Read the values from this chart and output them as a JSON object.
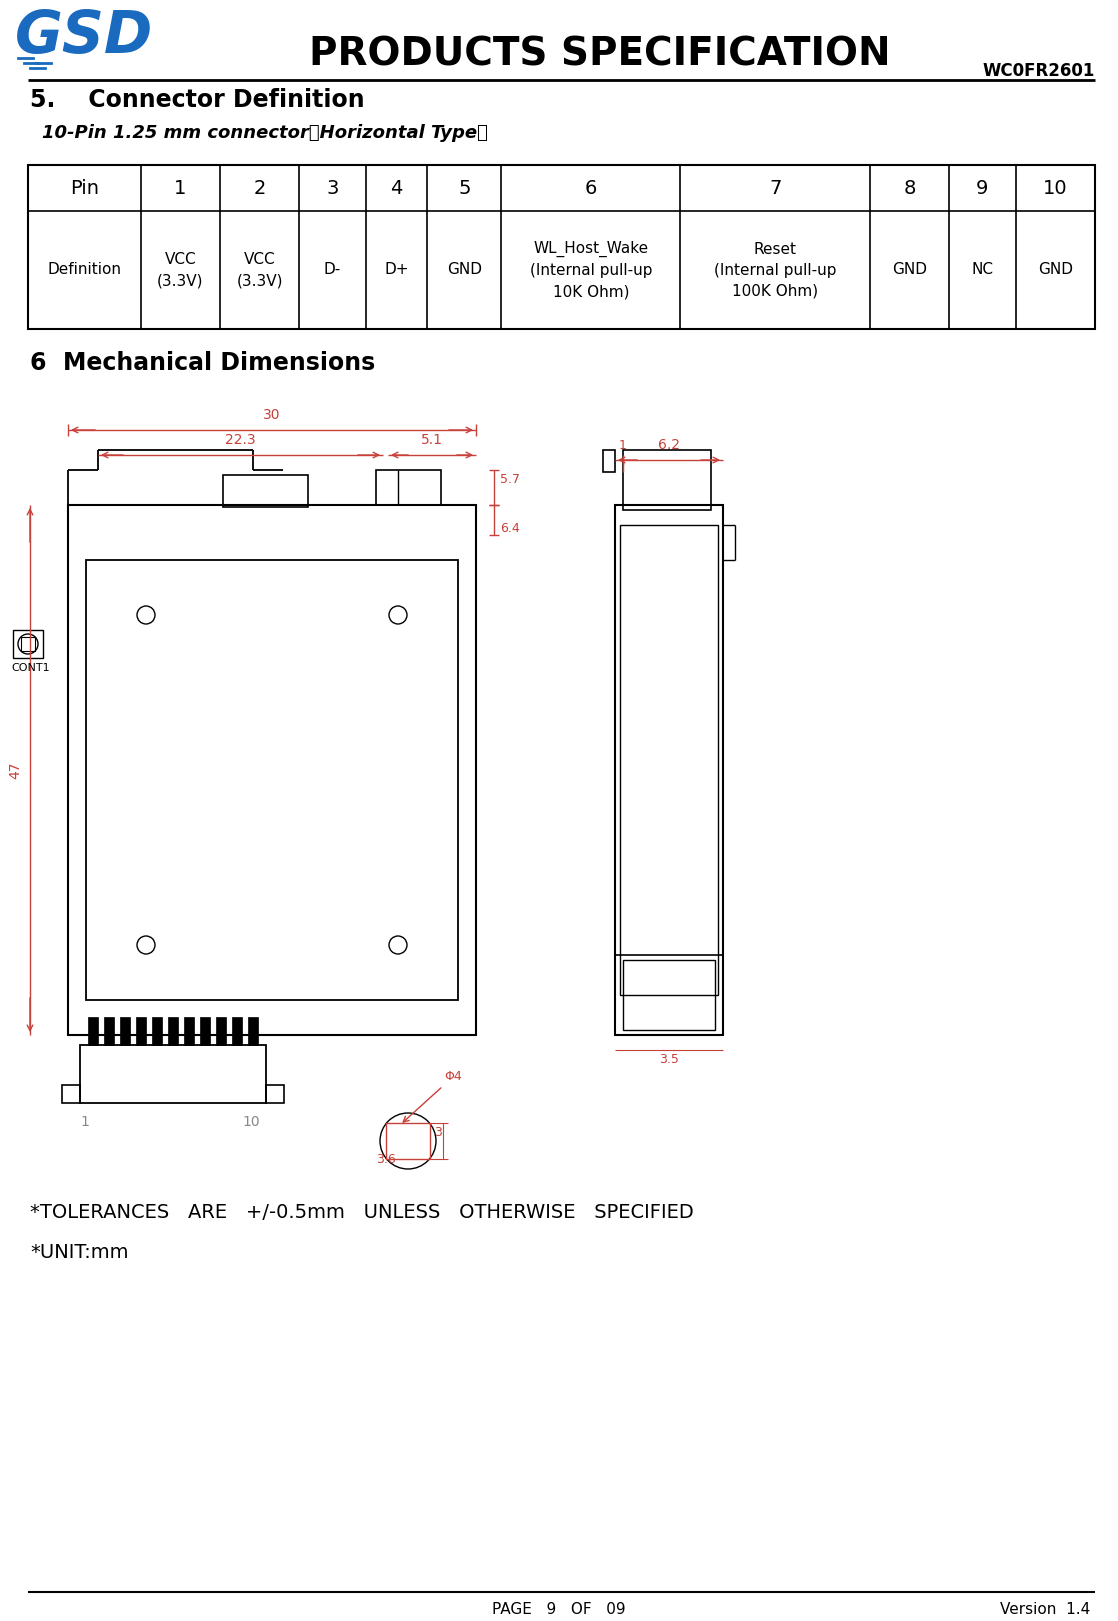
{
  "title": "PRODUCTS SPECIFICATION",
  "model": "WC0FR2601",
  "page_footer": "PAGE   9   OF   09",
  "version_footer": "Version  1.4",
  "section5_title": "5.    Connector Definition",
  "section5_sub": "10-Pin 1.25 mm connector（Horizontal Type）",
  "section6_title": "6  Mechanical Dimensions",
  "table_headers": [
    "Pin",
    "1",
    "2",
    "3",
    "4",
    "5",
    "6",
    "7",
    "8",
    "9",
    "10"
  ],
  "table_row1": [
    "Definition",
    "VCC\n(3.3V)",
    "VCC\n(3.3V)",
    "D-",
    "D+",
    "GND",
    "WL_Host_Wake\n(Internal pull-up\n10K Ohm)",
    "Reset\n(Internal pull-up\n100K Ohm)",
    "GND",
    "NC",
    "GND"
  ],
  "tolerances_note": "*TOLERANCES   ARE   +/-0.5mm   UNLESS   OTHERWISE   SPECIFIED",
  "unit_note": "*UNIT:mm",
  "bg_color": "#ffffff",
  "text_color": "#000000",
  "dim_color": "#c8403a",
  "draw_color": "#000000"
}
